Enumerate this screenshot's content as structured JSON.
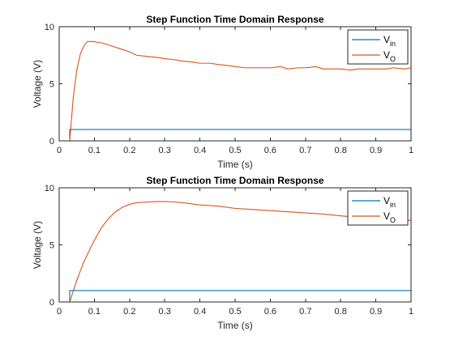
{
  "chart_data": [
    {
      "type": "line",
      "title": "Step Function Time Domain Response",
      "xlabel": "Time (s)",
      "ylabel": "Voltage (V)",
      "xlim": [
        0,
        1
      ],
      "ylim": [
        0,
        10
      ],
      "xticks": [
        "0",
        "0.1",
        "0.2",
        "0.3",
        "0.4",
        "0.5",
        "0.6",
        "0.7",
        "0.8",
        "0.9",
        "1"
      ],
      "yticks": [
        "0",
        "5",
        "10"
      ],
      "grid": false,
      "legend_position": "top-right",
      "series": [
        {
          "legend_main": "V",
          "legend_sub": "in",
          "color": "#0072BD",
          "x": [
            0,
            0.03,
            0.03,
            1
          ],
          "y": [
            0,
            0,
            1,
            1
          ]
        },
        {
          "legend_main": "V",
          "legend_sub": "O",
          "color": "#D95319",
          "x": [
            0,
            0.03,
            0.04,
            0.05,
            0.06,
            0.07,
            0.08,
            0.09,
            0.1,
            0.11,
            0.12,
            0.13,
            0.15,
            0.17,
            0.2,
            0.22,
            0.25,
            0.28,
            0.3,
            0.33,
            0.35,
            0.38,
            0.4,
            0.43,
            0.45,
            0.48,
            0.5,
            0.53,
            0.55,
            0.58,
            0.6,
            0.63,
            0.65,
            0.68,
            0.7,
            0.73,
            0.75,
            0.78,
            0.8,
            0.83,
            0.85,
            0.88,
            0.9,
            0.93,
            0.95,
            0.98,
            1.0
          ],
          "y": [
            0,
            0,
            3.8,
            6.2,
            7.6,
            8.3,
            8.7,
            8.7,
            8.7,
            8.6,
            8.6,
            8.5,
            8.3,
            8.1,
            7.8,
            7.5,
            7.4,
            7.3,
            7.2,
            7.1,
            7.0,
            6.9,
            6.8,
            6.8,
            6.7,
            6.6,
            6.5,
            6.4,
            6.4,
            6.4,
            6.4,
            6.5,
            6.3,
            6.4,
            6.4,
            6.5,
            6.3,
            6.3,
            6.3,
            6.2,
            6.3,
            6.3,
            6.3,
            6.3,
            6.4,
            6.3,
            6.4
          ]
        }
      ]
    },
    {
      "type": "line",
      "title": "Step Function Time Domain Response",
      "xlabel": "Time (s)",
      "ylabel": "Voltage (V)",
      "xlim": [
        0,
        1
      ],
      "ylim": [
        0,
        10
      ],
      "xticks": [
        "0",
        "0.1",
        "0.2",
        "0.3",
        "0.4",
        "0.5",
        "0.6",
        "0.7",
        "0.8",
        "0.9",
        "1"
      ],
      "yticks": [
        "0",
        "5",
        "10"
      ],
      "grid": false,
      "legend_position": "top-right",
      "series": [
        {
          "legend_main": "V",
          "legend_sub": "in",
          "color": "#0072BD",
          "x": [
            0,
            0.03,
            0.03,
            1
          ],
          "y": [
            0,
            0,
            1,
            1
          ]
        },
        {
          "legend_main": "V",
          "legend_sub": "O",
          "color": "#D95319",
          "x": [
            0,
            0.03,
            0.05,
            0.07,
            0.09,
            0.1,
            0.12,
            0.14,
            0.16,
            0.18,
            0.2,
            0.22,
            0.25,
            0.28,
            0.3,
            0.33,
            0.35,
            0.4,
            0.45,
            0.5,
            0.55,
            0.6,
            0.65,
            0.7,
            0.75,
            0.8,
            0.85,
            0.9,
            0.95,
            1.0
          ],
          "y": [
            0,
            0,
            1.9,
            3.5,
            4.8,
            5.4,
            6.5,
            7.3,
            7.9,
            8.3,
            8.55,
            8.7,
            8.75,
            8.8,
            8.8,
            8.75,
            8.7,
            8.5,
            8.4,
            8.2,
            8.1,
            8.0,
            7.9,
            7.8,
            7.7,
            7.55,
            7.4,
            7.3,
            7.2,
            7.15
          ]
        }
      ]
    }
  ]
}
